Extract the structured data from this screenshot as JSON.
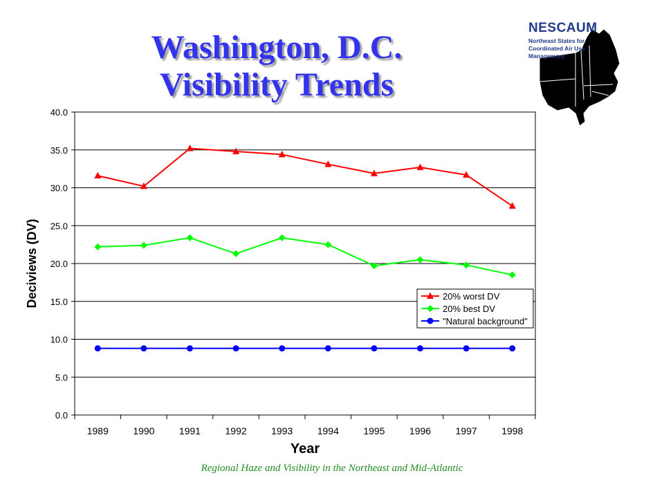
{
  "title": {
    "line1": "Washington, D.C.",
    "line2": "Visibility Trends"
  },
  "logo": {
    "name": "NESCAUM",
    "subtitle_lines": [
      "Northeast States for",
      "Coordinated Air Use",
      "Management"
    ],
    "icon": "northeast-states-map-icon"
  },
  "footer": "Regional Haze and Visibility in the Northeast and Mid-Atlantic",
  "chart_data": {
    "type": "line",
    "xlabel": "Year",
    "ylabel": "Deciviews (DV)",
    "ylim": [
      0,
      40
    ],
    "yticks": [
      "0.0",
      "5.0",
      "10.0",
      "15.0",
      "20.0",
      "25.0",
      "30.0",
      "35.0",
      "40.0"
    ],
    "categories": [
      "1989",
      "1990",
      "1991",
      "1992",
      "1993",
      "1994",
      "1995",
      "1996",
      "1997",
      "1998"
    ],
    "grid": "horizontal",
    "legend_position": "right",
    "series": [
      {
        "name": "20% worst DV",
        "color": "#ff0000",
        "marker": "triangle",
        "values": [
          31.6,
          30.2,
          35.2,
          34.8,
          34.4,
          33.1,
          31.9,
          32.7,
          31.7,
          27.6
        ]
      },
      {
        "name": "20% best DV",
        "color": "#00ff00",
        "marker": "diamond",
        "values": [
          22.2,
          22.4,
          23.4,
          21.3,
          23.4,
          22.5,
          19.7,
          20.5,
          19.8,
          18.5
        ]
      },
      {
        "name": "\"Natural background\"",
        "color": "#0000ff",
        "marker": "circle",
        "values": [
          8.8,
          8.8,
          8.8,
          8.8,
          8.8,
          8.8,
          8.8,
          8.8,
          8.8,
          8.8
        ]
      }
    ]
  }
}
